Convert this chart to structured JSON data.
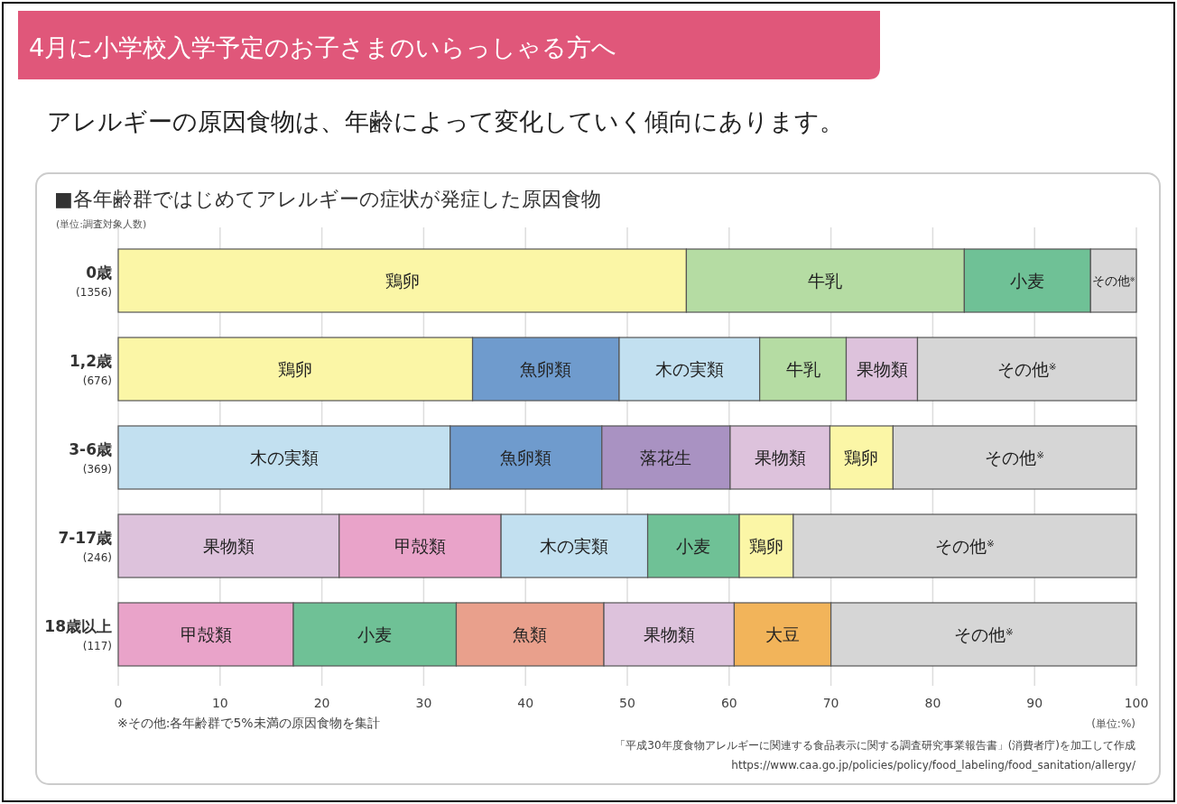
{
  "chart_data": {
    "type": "bar",
    "orientation": "horizontal",
    "stacked": true,
    "title": "4月に小学校入学予定のお子さまのいらっしゃる方へ",
    "subtitle": "アレルギーの原因食物は、年齢によって変化していく傾向にあります。",
    "annotations": [
      "■各年齢群ではじめてアレルギーの症状が発症した原因食物",
      "(単位:調査対象人数)",
      "※その他:各年齢群で5%未満の原因食物を集計",
      "(単位:%)",
      "「平成30年度食物アレルギーに関連する食品表示に関する調査研究事業報告書」(消費者庁)を加工して作成",
      "https://www.caa.go.jp/policies/policy/food_labeling/food_sanitation/allergy/"
    ],
    "categories": [
      "0歳\n(1356)",
      "1,2歳\n(676)",
      "3-6歳\n(369)",
      "7-17歳\n(246)",
      "18歳以上\n(117)"
    ],
    "xlim": [
      0,
      100
    ],
    "xticks": [
      0,
      10,
      20,
      30,
      40,
      50,
      60,
      70,
      80,
      90,
      100
    ],
    "grid": "x",
    "series": [
      {
        "values": [
          55.8,
          34.8,
          32.6,
          21.7,
          17.2
        ],
        "colors": [
          "#fbf6a6",
          "#fbf6a6",
          "#c2e0f0",
          "#ddc2dc",
          "#e9a3c9"
        ],
        "value_labels": [
          "鶏卵",
          "鶏卵",
          "木の実類",
          "果物類",
          "甲殻類"
        ]
      },
      {
        "values": [
          27.3,
          14.4,
          14.9,
          15.9,
          16.0
        ],
        "colors": [
          "#b5dca3",
          "#6f9bcd",
          "#6f9bcd",
          "#e9a3c9",
          "#6fc196"
        ],
        "value_labels": [
          "牛乳",
          "魚卵類",
          "魚卵類",
          "甲殻類",
          "小麦"
        ]
      },
      {
        "values": [
          12.4,
          13.8,
          12.6,
          14.4,
          14.5
        ],
        "colors": [
          "#6fc196",
          "#c2e0f0",
          "#a992c2",
          "#c2e0f0",
          "#e9a08c"
        ],
        "value_labels": [
          "小麦",
          "木の実類",
          "落花生",
          "木の実類",
          "魚類"
        ]
      },
      {
        "values": [
          4.5,
          8.5,
          9.8,
          9.0,
          12.8
        ],
        "colors": [
          "#d6d6d6",
          "#b5dca3",
          "#ddc2dc",
          "#6fc196",
          "#ddc2dc"
        ],
        "value_labels": [
          "その他$^{※}$",
          "牛乳",
          "果物類",
          "小麦",
          "果物類"
        ]
      },
      {
        "values": [
          null,
          7.0,
          6.2,
          5.3,
          9.5
        ],
        "colors": [
          null,
          "#ddc2dc",
          "#fbf6a6",
          "#fbf6a6",
          "#f2b45a"
        ],
        "value_labels": [
          null,
          "果物類",
          "鶏卵",
          "鶏卵",
          "大豆"
        ]
      },
      {
        "values": [
          null,
          21.5,
          23.9,
          33.7,
          30.0
        ],
        "colors": [
          null,
          "#d6d6d6",
          "#d6d6d6",
          "#d6d6d6",
          "#d6d6d6"
        ],
        "value_labels": [
          null,
          "その他$^{※}$",
          "その他$^{※}$",
          "その他$^{※}$",
          "その他$^{※}$"
        ]
      }
    ]
  }
}
